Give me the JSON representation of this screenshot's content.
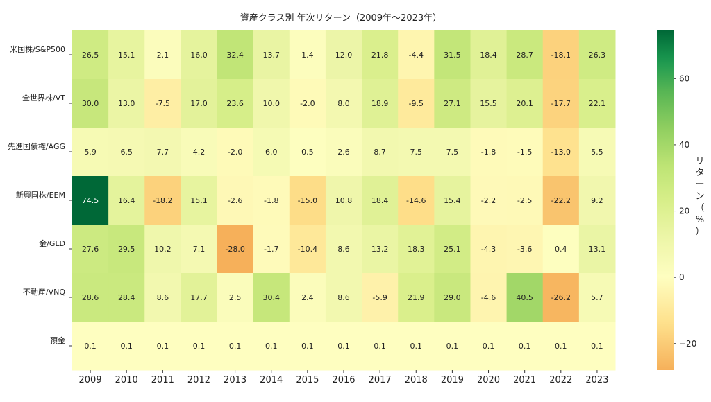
{
  "chart_data": {
    "type": "heatmap",
    "title": "資産クラス別 年次リターン（2009年〜2023年）",
    "x": [
      2009,
      2010,
      2011,
      2012,
      2013,
      2014,
      2015,
      2016,
      2017,
      2018,
      2019,
      2020,
      2021,
      2022,
      2023
    ],
    "y": [
      "米国株/S&P500",
      "全世界株/VT",
      "先進国債権/AGG",
      "新興国株/EEM",
      "金/GLD",
      "不動産/VNQ",
      "預金"
    ],
    "values": [
      [
        26.5,
        15.1,
        2.1,
        16.0,
        32.4,
        13.7,
        1.4,
        12.0,
        21.8,
        -4.4,
        31.5,
        18.4,
        28.7,
        -18.1,
        26.3
      ],
      [
        30.0,
        13.0,
        -7.5,
        17.0,
        23.6,
        10.0,
        -2.0,
        8.0,
        18.9,
        -9.5,
        27.1,
        15.5,
        20.1,
        -17.7,
        22.1
      ],
      [
        5.9,
        6.5,
        7.7,
        4.2,
        -2.0,
        6.0,
        0.5,
        2.6,
        8.7,
        7.5,
        7.5,
        -1.8,
        -1.5,
        -13.0,
        5.5
      ],
      [
        74.5,
        16.4,
        -18.2,
        15.1,
        -2.6,
        -1.8,
        -15.0,
        10.8,
        18.4,
        -14.6,
        15.4,
        -2.2,
        -2.5,
        -22.2,
        9.2
      ],
      [
        27.6,
        29.5,
        10.2,
        7.1,
        -28.0,
        -1.7,
        -10.4,
        8.6,
        13.2,
        18.3,
        25.1,
        -4.3,
        -3.6,
        0.4,
        13.1
      ],
      [
        28.6,
        28.4,
        8.6,
        17.7,
        2.5,
        30.4,
        2.4,
        8.6,
        -5.9,
        21.9,
        29.0,
        -4.6,
        40.5,
        -26.2,
        5.7
      ],
      [
        0.1,
        0.1,
        0.1,
        0.1,
        0.1,
        0.1,
        0.1,
        0.1,
        0.1,
        0.1,
        0.1,
        0.1,
        0.1,
        0.1,
        0.1
      ]
    ],
    "colorbar": {
      "label": "リターン（%）",
      "range": [
        -28.0,
        74.5
      ],
      "ticks": [
        -20,
        0,
        20,
        40,
        60
      ],
      "colors": {
        "low": "#f6b05a",
        "mid": "#fefec0",
        "high": "#006837"
      }
    }
  }
}
